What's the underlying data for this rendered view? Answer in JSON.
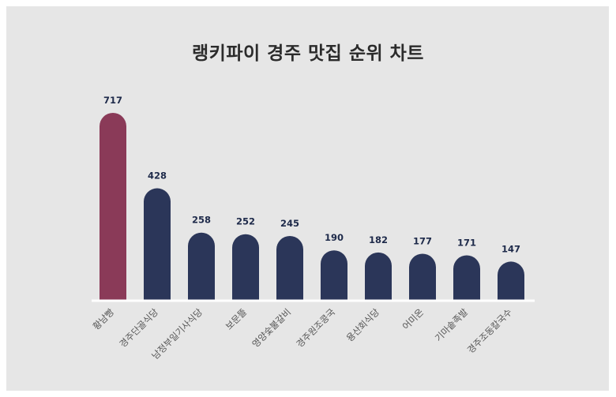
{
  "chart_data": {
    "type": "bar",
    "title": "랭키파이 경주 맛집 순위 차트",
    "categories": [
      "황남빵",
      "경주단골식당",
      "남정부일기사식당",
      "보문뜰",
      "영양숯불갈비",
      "경주원조콩국",
      "용산회식당",
      "어미온",
      "기마솥족발",
      "경주조동칼국수"
    ],
    "values": [
      717,
      428,
      258,
      252,
      245,
      190,
      182,
      177,
      171,
      147
    ],
    "highlight_index": 0,
    "colors": {
      "highlight": "#8a3a58",
      "bar": "#2b3659",
      "value_label": "#1e2a4a",
      "category_label": "#555555",
      "baseline": "#ffffff",
      "background": "#e6e6e6"
    },
    "xlabel": "",
    "ylabel": "",
    "legend": "none",
    "grid": false
  }
}
